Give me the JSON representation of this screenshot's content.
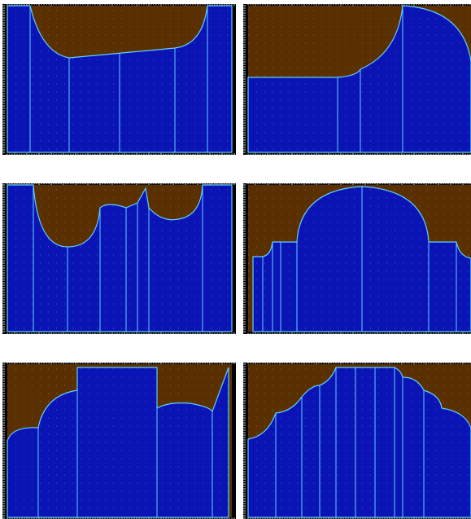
{
  "colors": {
    "background": "#ffffff",
    "frame": "#000000",
    "fill": "#0a14b4",
    "region": "#5a3000",
    "outline": "#5fd0ff",
    "ruler": "#cfcfcf",
    "grid_dot": "#8a8ad8"
  },
  "panels": [
    {
      "id": "panel-1",
      "row": 1,
      "column": 1,
      "vertical_segments": 6
    },
    {
      "id": "panel-2",
      "row": 1,
      "column": 2,
      "vertical_segments": 4
    },
    {
      "id": "panel-3",
      "row": 2,
      "column": 1,
      "vertical_segments": 7
    },
    {
      "id": "panel-4",
      "row": 2,
      "column": 2,
      "vertical_segments": 7
    },
    {
      "id": "panel-5",
      "row": 3,
      "column": 1,
      "vertical_segments": 5
    },
    {
      "id": "panel-6",
      "row": 3,
      "column": 2,
      "vertical_segments": 9
    }
  ]
}
